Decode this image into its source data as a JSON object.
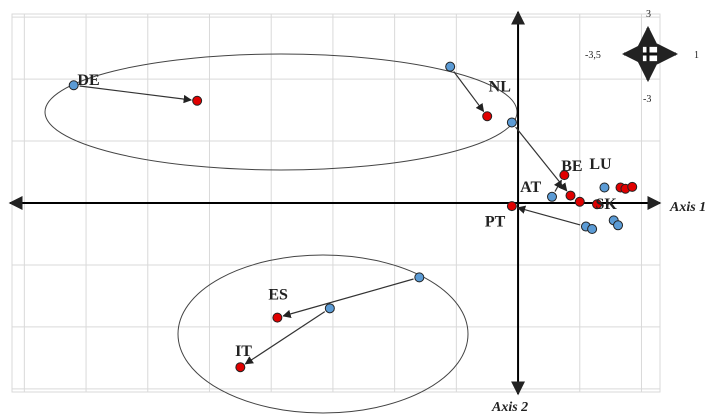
{
  "chart_data": {
    "type": "scatter",
    "xlabel": "Axis 1",
    "ylabel": "Axis 2",
    "xlim": [
      -8.2,
      2.3
    ],
    "ylim": [
      -3.05,
      3.05
    ],
    "grid": true,
    "colors": {
      "start": "#5b9bd5",
      "end": "#e00000",
      "arrow": "#333333",
      "grid": "#d9d9d9"
    },
    "trajectories": [
      {
        "label": "DE",
        "from": [
          -7.2,
          1.9
        ],
        "to": [
          -5.2,
          1.65
        ]
      },
      {
        "label": "NL",
        "from": [
          -1.1,
          2.2
        ],
        "to": [
          -0.5,
          1.4
        ]
      },
      {
        "label": "BE",
        "from": [
          -0.1,
          1.3
        ],
        "to": [
          0.85,
          0.12
        ]
      },
      {
        "label": "AT",
        "from": [
          0.55,
          0.1
        ],
        "to": [
          0.75,
          0.45
        ]
      },
      {
        "label": "PT",
        "from": [
          1.1,
          -0.38
        ],
        "to": [
          -0.1,
          -0.05
        ]
      },
      {
        "label": "ES",
        "from": [
          -1.6,
          -1.2
        ],
        "to": [
          -3.9,
          -1.85
        ]
      },
      {
        "label": "IT",
        "from": [
          -3.05,
          -1.7
        ],
        "to": [
          -4.5,
          -2.65
        ]
      }
    ],
    "extra_points": [
      {
        "group": "start",
        "x": 1.4,
        "y": 0.25
      },
      {
        "group": "start",
        "x": 1.55,
        "y": -0.28
      },
      {
        "group": "start",
        "x": 1.62,
        "y": -0.36
      },
      {
        "group": "start",
        "x": 1.2,
        "y": -0.42
      },
      {
        "group": "end",
        "x": 1.66,
        "y": 0.25
      },
      {
        "group": "end",
        "x": 1.74,
        "y": 0.23
      },
      {
        "group": "end",
        "x": 1.85,
        "y": 0.26
      },
      {
        "group": "end",
        "x": 1.0,
        "y": 0.02
      },
      {
        "group": "end",
        "x": 1.28,
        "y": -0.02
      }
    ],
    "annotations": [
      {
        "text": "LU",
        "x": 1.35,
        "y": 0.55
      },
      {
        "text": "SK",
        "x": 1.45,
        "y": -0.1
      }
    ],
    "legend": {
      "position": "top-right",
      "up": "3",
      "down": "-3",
      "left": "-3,5",
      "right": "1"
    }
  }
}
